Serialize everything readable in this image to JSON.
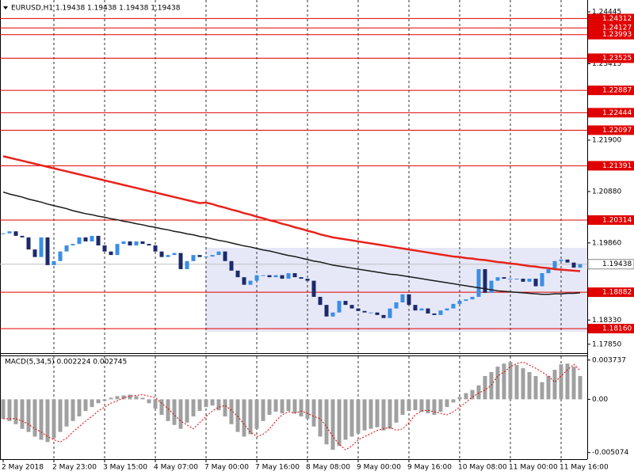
{
  "chart_data": [
    {
      "type": "candlestick",
      "title": "EURUSD,H1  1.19438 1.19438 1.19438 1.19438",
      "categories": [
        "2 May 2018",
        null,
        null,
        null,
        null,
        null,
        null,
        null,
        "2 May 23:00",
        null,
        null,
        null,
        null,
        null,
        null,
        null,
        "3 May 15:00",
        null,
        null,
        null,
        null,
        null,
        null,
        null,
        "4 May 07:00",
        null,
        null,
        null,
        null,
        null,
        null,
        null,
        "7 May 00:00",
        null,
        null,
        null,
        null,
        null,
        null,
        null,
        "7 May 16:00",
        null,
        null,
        null,
        null,
        null,
        null,
        null,
        "8 May 08:00",
        null,
        null,
        null,
        null,
        null,
        null,
        null,
        "9 May 00:00",
        null,
        null,
        null,
        null,
        null,
        null,
        null,
        "9 May 16:00",
        null,
        null,
        null,
        null,
        null,
        null,
        null,
        "10 May 08:00",
        null,
        null,
        null,
        null,
        null,
        null,
        null,
        "11 May 00:00",
        null,
        null,
        null,
        null,
        null,
        null,
        null,
        "11 May 16:00",
        null,
        null,
        null
      ],
      "values": [
        1.2005,
        1.2009,
        1.2,
        1.1997,
        1.1973,
        1.1958,
        1.1997,
        1.1942,
        1.195,
        1.1969,
        1.1981,
        1.1984,
        1.1997,
        1.1989,
        1.2,
        1.1981,
        1.1969,
        1.1962,
        1.1984,
        1.1989,
        1.1981,
        1.1989,
        1.1984,
        1.1981,
        1.1969,
        1.1958,
        1.1962,
        1.1966,
        1.1934,
        1.195,
        1.1962,
        1.1958,
        1.1959,
        1.1962,
        1.1969,
        1.195,
        1.1931,
        1.1918,
        1.1903,
        1.1911,
        1.1922,
        1.1922,
        1.1918,
        1.1922,
        1.1915,
        1.1926,
        1.1918,
        1.1915,
        1.1911,
        1.1879,
        1.1863,
        1.184,
        1.1848,
        1.1871,
        1.1863,
        1.1856,
        1.1851,
        1.1848,
        1.1848,
        1.1843,
        1.1837,
        1.1856,
        1.1868,
        1.1884,
        1.1863,
        1.1852,
        1.1856,
        1.1846,
        1.1843,
        1.1852,
        1.1856,
        1.1865,
        1.1871,
        1.1874,
        1.1879,
        1.1934,
        1.1887,
        1.1911,
        1.1918,
        1.1915,
        1.1915,
        1.1915,
        1.1909,
        1.1915,
        1.19,
        1.1926,
        1.1934,
        1.195,
        1.1953,
        1.1947,
        1.1937,
        1.1944
      ],
      "up_color": "#3a8ee6",
      "down_color": "#1c2a6b",
      "ma_lines": [
        {
          "color": "#e8231c",
          "values": [
            1.2158,
            1.2155,
            1.2152,
            1.2149,
            1.2146,
            1.2143,
            1.214,
            1.2137,
            1.2134,
            1.2131,
            1.2128,
            1.2125,
            1.2122,
            1.2119,
            1.2116,
            1.2113,
            1.211,
            1.2107,
            1.2104,
            1.2101,
            1.2098,
            1.2095,
            1.2092,
            1.2089,
            1.2086,
            1.2083,
            1.208,
            1.2077,
            1.2074,
            1.2071,
            1.2068,
            1.2065,
            1.2066,
            1.2063,
            1.2059,
            1.2056,
            1.2052,
            1.2049,
            1.2045,
            1.2042,
            1.2038,
            1.2035,
            1.2031,
            1.2028,
            1.2024,
            1.2021,
            1.2017,
            1.2014,
            1.201,
            1.2007,
            1.2003,
            1.2,
            1.1997,
            1.1995,
            1.1993,
            1.1991,
            1.1989,
            1.1987,
            1.1985,
            1.1983,
            1.1981,
            1.1979,
            1.1977,
            1.1975,
            1.1973,
            1.1971,
            1.1969,
            1.1967,
            1.1965,
            1.1963,
            1.1961,
            1.1959,
            1.1958,
            1.1956,
            1.1955,
            1.1953,
            1.1952,
            1.195,
            1.1948,
            1.1947,
            1.1945,
            1.1944,
            1.1942,
            1.194,
            1.1939,
            1.1937,
            1.1936,
            1.1934,
            1.1933,
            1.1932,
            1.1931,
            1.193
          ]
        },
        {
          "color": "#1a1a1a",
          "values": [
            1.2087,
            1.2083,
            1.208,
            1.2077,
            1.2073,
            1.207,
            1.2067,
            1.2063,
            1.206,
            1.2057,
            1.2054,
            1.205,
            1.2047,
            1.2044,
            1.2042,
            1.2039,
            1.2037,
            1.2034,
            1.2032,
            1.2029,
            1.2027,
            1.2024,
            1.2022,
            1.2019,
            1.2017,
            1.2014,
            1.2012,
            1.2009,
            1.2007,
            1.2004,
            1.2002,
            1.1999,
            1.1997,
            1.1994,
            1.1991,
            1.1989,
            1.1986,
            1.1983,
            1.198,
            1.1978,
            1.1975,
            1.1972,
            1.197,
            1.1967,
            1.1964,
            1.1961,
            1.1959,
            1.1956,
            1.1953,
            1.195,
            1.1948,
            1.1945,
            1.1942,
            1.194,
            1.1938,
            1.1936,
            1.1934,
            1.1932,
            1.193,
            1.1928,
            1.1926,
            1.1924,
            1.1923,
            1.1921,
            1.1919,
            1.1917,
            1.1915,
            1.1913,
            1.1911,
            1.1909,
            1.1907,
            1.1905,
            1.1903,
            1.1901,
            1.1899,
            1.1897,
            1.1895,
            1.1893,
            1.1891,
            1.189,
            1.1889,
            1.1888,
            1.1887,
            1.1886,
            1.1885,
            1.1884,
            1.1884,
            1.1885,
            1.1885,
            1.1886,
            1.1886,
            1.1887
          ]
        }
      ],
      "levels": [
        1.24312,
        1.24127,
        1.23993,
        1.23525,
        1.22887,
        1.22444,
        1.22097,
        1.21391,
        1.20314,
        1.18882,
        {
          "value": 1.1816,
          "label": "1.18160"
        }
      ],
      "level_color": "#e00000",
      "last_price": 1.19438,
      "ylim": [
        1.1769,
        1.2468
      ],
      "yticks": [
        1.24445,
        1.23415,
        {
          "value": 1.219,
          "label": "1.21900"
        },
        {
          "value": 1.2088,
          "label": "1.20880"
        },
        {
          "value": 1.1986,
          "label": "1.19860"
        },
        {
          "value": 1.1833,
          "label": "1.18330"
        },
        {
          "value": 1.1785,
          "label": "1.17850"
        }
      ],
      "grid": true
    },
    {
      "type": "bar",
      "title": "MACD(5,34,5) 0.002224 0.002745",
      "values": [
        -0.00185,
        -0.00207,
        -0.00237,
        -0.00281,
        -0.00311,
        -0.00355,
        -0.00385,
        -0.00407,
        -0.0037,
        -0.00311,
        -0.00259,
        -0.00207,
        -0.00163,
        -0.00111,
        -0.00074,
        -0.00037,
        -0.00015,
        0.00015,
        0.0003,
        0.00037,
        0.00044,
        0.0003,
        0.00015,
        -0.00037,
        -0.00089,
        -0.00148,
        -0.00207,
        -0.00244,
        -0.00281,
        -0.00222,
        -0.00163,
        -0.00111,
        -0.00074,
        -0.00059,
        -0.00104,
        -0.00163,
        -0.00237,
        -0.00311,
        -0.00355,
        -0.00333,
        -0.00281,
        -0.00207,
        -0.00148,
        -0.00118,
        -0.00133,
        -0.00111,
        -0.00133,
        -0.00163,
        -0.00185,
        -0.00259,
        -0.00355,
        -0.00429,
        -0.00481,
        -0.00444,
        -0.00385,
        -0.00355,
        -0.00326,
        -0.00296,
        -0.00281,
        -0.00266,
        -0.00296,
        -0.00281,
        -0.00222,
        -0.00148,
        -0.00111,
        -0.00104,
        -0.00118,
        -0.00133,
        -0.00148,
        -0.00118,
        -0.00074,
        -0.0003,
        0.00022,
        0.00059,
        0.00089,
        0.00133,
        0.00222,
        0.00259,
        0.00311,
        0.0034,
        0.00355,
        0.00326,
        0.00296,
        0.00259,
        0.00222,
        0.00163,
        0.00222,
        0.00281,
        0.00333,
        0.0034,
        0.00311,
        0.002224
      ],
      "color": "#a0a0a0",
      "signal": {
        "color": "#e00000",
        "values": [
          -0.00185,
          -0.00185,
          -0.00185,
          -0.00207,
          -0.00237,
          -0.00281,
          -0.00311,
          -0.00355,
          -0.00385,
          -0.00407,
          -0.0037,
          -0.00311,
          -0.00259,
          -0.00207,
          -0.00163,
          -0.00111,
          -0.00074,
          -0.00037,
          -0.00015,
          0.00015,
          0.0003,
          0.00037,
          0.00044,
          0.0003,
          0.00015,
          -0.00037,
          -0.00089,
          -0.00148,
          -0.00207,
          -0.00244,
          -0.00281,
          -0.00222,
          -0.00163,
          -0.00111,
          -0.00074,
          -0.00059,
          -0.00104,
          -0.00163,
          -0.00237,
          -0.00311,
          -0.00355,
          -0.00333,
          -0.00281,
          -0.00207,
          -0.00148,
          -0.00118,
          -0.00133,
          -0.00111,
          -0.00133,
          -0.00163,
          -0.00185,
          -0.00259,
          -0.00355,
          -0.00429,
          -0.00481,
          -0.00444,
          -0.00385,
          -0.00355,
          -0.00326,
          -0.00296,
          -0.00281,
          -0.00266,
          -0.00296,
          -0.00281,
          -0.00222,
          -0.00148,
          -0.00111,
          -0.00104,
          -0.00118,
          -0.00133,
          -0.00148,
          -0.00118,
          -0.00074,
          -0.0003,
          0.00022,
          0.00059,
          0.00089,
          0.00133,
          0.00222,
          0.00259,
          0.00311,
          0.0034,
          0.00355,
          0.00326,
          0.00296,
          0.00259,
          0.00222,
          0.00163,
          0.00222,
          0.00281,
          0.00333,
          0.002745
        ]
      },
      "ylim": [
        -0.0057,
        0.0041
      ],
      "yticks": [
        0.003737,
        {
          "value": 0,
          "label": "0.00"
        },
        {
          "value": -0.005074,
          "label": "-0.005074"
        }
      ]
    }
  ]
}
